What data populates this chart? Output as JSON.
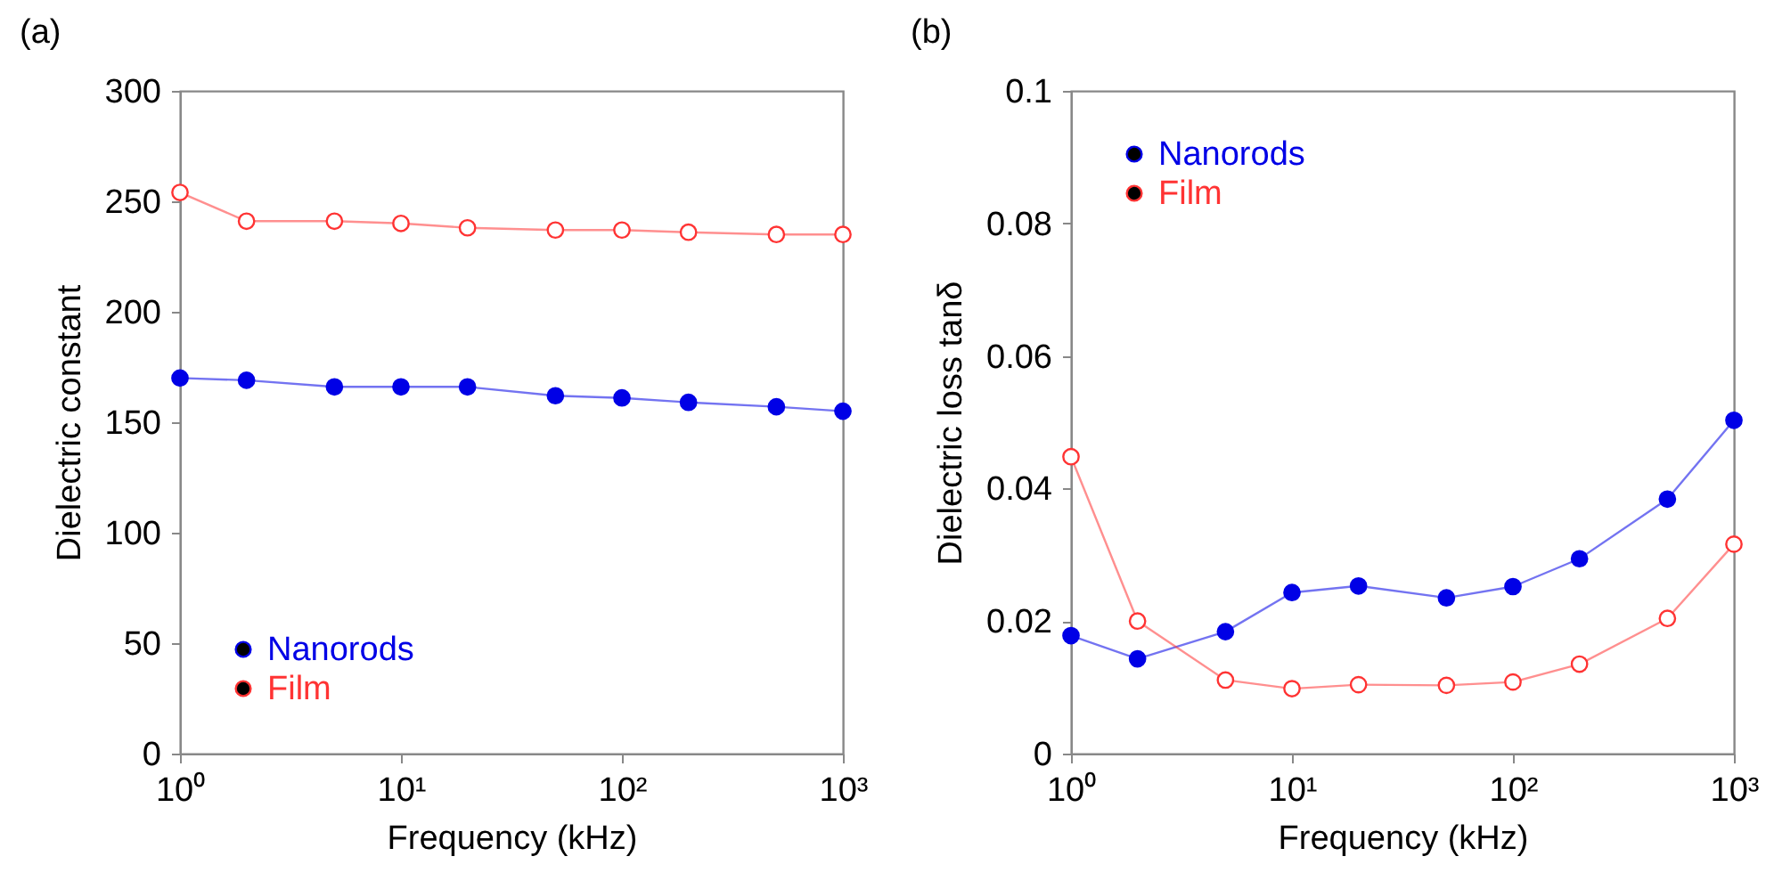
{
  "chart_data": [
    {
      "type": "line",
      "title": "(a)",
      "xlabel": "Frequency (kHz)",
      "ylabel": "Dielectric constant",
      "x": [
        1,
        2,
        5,
        10,
        20,
        50,
        100,
        200,
        500,
        1000
      ],
      "series": [
        {
          "name": "Nanorods",
          "color": "#0000e6",
          "marker": "circle",
          "values": [
            170,
            169,
            166,
            166,
            166,
            162,
            161,
            159,
            157,
            155
          ]
        },
        {
          "name": "Film",
          "color": "#ff3333",
          "marker": "open-circle",
          "values": [
            254,
            241,
            241,
            240,
            238,
            237,
            237,
            236,
            235,
            235
          ]
        }
      ],
      "log": "x",
      "xlim": [
        1,
        1000
      ],
      "xticks": [
        {
          "value": 1,
          "label": "10⁰"
        },
        {
          "value": 10,
          "label": "10¹"
        },
        {
          "value": 100,
          "label": "10²"
        },
        {
          "value": 1000,
          "label": "10³"
        }
      ],
      "ylim": [
        0,
        300
      ],
      "yticks": [
        0,
        50,
        100,
        150,
        200,
        250,
        300
      ],
      "grid": false,
      "legend": "bottom left"
    },
    {
      "type": "line",
      "title": "(b)",
      "xlabel": "Frequency (kHz)",
      "ylabel": "Dielectric loss tanδ",
      "x": [
        1,
        2,
        5,
        10,
        20,
        50,
        100,
        200,
        500,
        1000
      ],
      "series": [
        {
          "name": "Nanorods",
          "color": "#0000e6",
          "marker": "circle",
          "values": [
            0.0178,
            0.0143,
            0.0184,
            0.0243,
            0.0253,
            0.0235,
            0.0252,
            0.0294,
            0.0384,
            0.0503
          ]
        },
        {
          "name": "Film",
          "color": "#ff3333",
          "marker": "open-circle",
          "values": [
            0.0448,
            0.02,
            0.0111,
            0.0098,
            0.0104,
            0.0103,
            0.0108,
            0.0135,
            0.0204,
            0.0316
          ]
        }
      ],
      "log": "x",
      "xlim": [
        1,
        1000
      ],
      "xticks": [
        {
          "value": 1,
          "label": "10⁰"
        },
        {
          "value": 10,
          "label": "10¹"
        },
        {
          "value": 100,
          "label": "10²"
        },
        {
          "value": 1000,
          "label": "10³"
        }
      ],
      "ylim": [
        0,
        0.1
      ],
      "yticks": [
        {
          "value": 0,
          "label": "0"
        },
        0.02,
        0.04,
        0.06,
        0.08,
        {
          "value": 0.1,
          "label": "0.1"
        }
      ],
      "grid": false,
      "legend": "top left"
    }
  ]
}
